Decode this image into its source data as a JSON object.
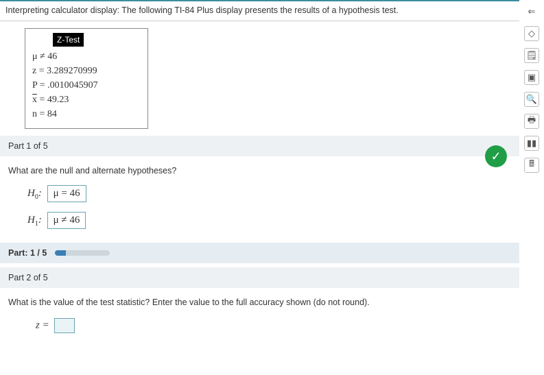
{
  "intro": "Interpreting calculator display: The following TI-84 Plus display presents the results of a hypothesis test.",
  "calc": {
    "title": "Z-Test",
    "mu_line": "μ ≠ 46",
    "z_line": "z = 3.289270999",
    "p_line": "P = .0010045907",
    "xbar_label": "x",
    "xbar_rest": " = 49.23",
    "n_line": "n = 84"
  },
  "part1": {
    "header": "Part 1 of 5",
    "question": "What are the null and alternate hypotheses?",
    "h0_label": "H",
    "h0_sub": "0",
    "h0_value": "μ = 46",
    "h1_label": "H",
    "h1_sub": "1",
    "h1_value": "μ ≠ 46",
    "correct": true
  },
  "progress": {
    "label": "Part: 1 / 5",
    "percent": 20
  },
  "part2": {
    "header": "Part 2 of 5",
    "question": "What is the value of the test statistic? Enter the value to the full accuracy shown (do not round).",
    "z_label": "z ="
  },
  "colors": {
    "accent": "#3a8fa0",
    "correct_bg": "#1f9e46",
    "box_border": "#6aa5b0",
    "header_bg": "#eef1f3",
    "progress_bg": "#e6edf2",
    "progress_fill": "#3b7fb5"
  }
}
